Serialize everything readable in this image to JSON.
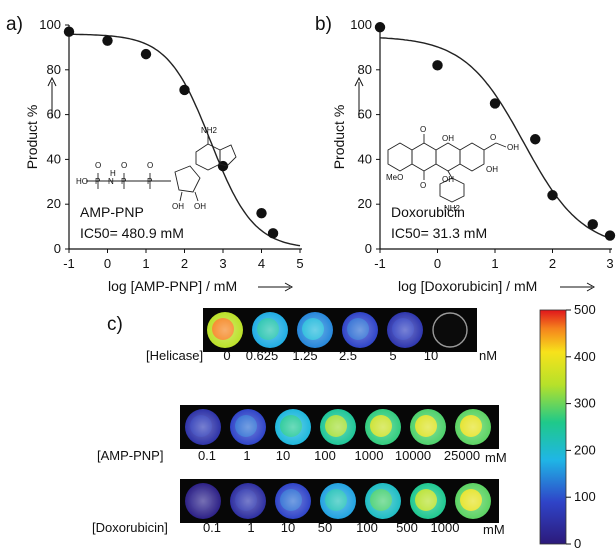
{
  "chart_data": [
    {
      "panel": "a)",
      "type": "scatter",
      "fit": "sigmoidal dose-response",
      "xlabel": "log [AMP-PNP] / mM",
      "ylabel": "Product %",
      "xlim": [
        -1,
        5
      ],
      "ylim": [
        0,
        100
      ],
      "xticks": [
        "-1",
        "0",
        "1",
        "2",
        "3",
        "4",
        "5"
      ],
      "yticks": [
        "0",
        "20",
        "40",
        "60",
        "80",
        "100"
      ],
      "x": [
        -1,
        0,
        1,
        2,
        3,
        4,
        4.3
      ],
      "y": [
        97,
        93,
        87,
        71,
        37,
        16,
        7
      ],
      "compound": "AMP-PNP",
      "ic50_text": "IC50= 480.9 mM",
      "ic50_log": 2.68,
      "top": 96,
      "hill": 0.78,
      "structure_labels": [
        "NH2",
        "HO",
        "O",
        "P",
        "N",
        "OH",
        "H"
      ]
    },
    {
      "panel": "b)",
      "type": "scatter",
      "fit": "sigmoidal dose-response",
      "xlabel": "log [Doxorubicin] / mM",
      "ylabel": "Product %",
      "xlim": [
        -1,
        3
      ],
      "ylim": [
        0,
        100
      ],
      "xticks": [
        "-1",
        "0",
        "1",
        "2",
        "3"
      ],
      "yticks": [
        "0",
        "20",
        "40",
        "60",
        "80",
        "100"
      ],
      "x": [
        -1,
        0,
        1,
        1.7,
        2,
        2.7,
        3
      ],
      "y": [
        99,
        82,
        65,
        49,
        24,
        11,
        6
      ],
      "compound": "Doxorubicin",
      "ic50_text": "IC50= 31.3 mM",
      "ic50_log": 1.5,
      "top": 95,
      "hill": 0.85,
      "structure_labels": [
        "O",
        "OH",
        "MeO",
        "NH2"
      ]
    },
    {
      "panel": "c)",
      "type": "heatmap",
      "colorbar_ticks": [
        "0",
        "100",
        "200",
        "300",
        "400",
        "500"
      ],
      "colorbar_range": [
        0,
        500
      ],
      "rows": [
        {
          "label": "[Helicase]",
          "unit": "nM",
          "concentrations": [
            "0",
            "0.625",
            "1.25",
            "2.5",
            "5",
            "10"
          ],
          "intensities": [
            460,
            230,
            190,
            120,
            80,
            0
          ]
        },
        {
          "label": "[AMP-PNP]",
          "unit": "mM",
          "concentrations": [
            "0.1",
            "1",
            "10",
            "100",
            "1000",
            "10000",
            "25000"
          ],
          "intensities": [
            70,
            120,
            250,
            330,
            360,
            380,
            390
          ]
        },
        {
          "label": "[Doxorubicin]",
          "unit": "mM",
          "concentrations": [
            "0.1",
            "1",
            "10",
            "50",
            "100",
            "500",
            "1000"
          ],
          "intensities": [
            20,
            60,
            120,
            220,
            280,
            340,
            390
          ]
        }
      ]
    }
  ]
}
